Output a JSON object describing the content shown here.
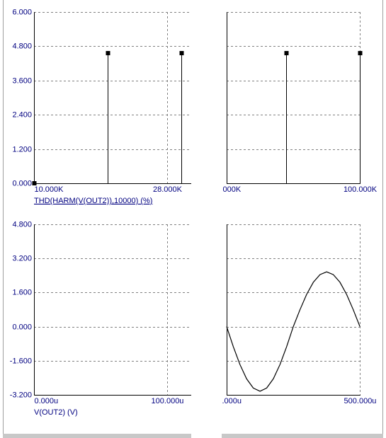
{
  "chart_data": [
    {
      "type": "stem",
      "x_label": "THD(HARM(V(OUT2)),10000) (%)",
      "x": [
        10000,
        20000,
        30000
      ],
      "series": [
        {
          "color": "#000000",
          "values": [
            0,
            4.56,
            4.56
          ]
        }
      ],
      "xlim": [
        10000,
        31300
      ],
      "xticks": [
        {
          "value": 10000,
          "label": "10.000K"
        },
        {
          "value": 28000,
          "label": "28.000K"
        }
      ],
      "ylim": [
        0,
        6
      ],
      "yticks": [
        {
          "value": 0,
          "label": "0.000"
        },
        {
          "value": 1.2,
          "label": "1.200"
        },
        {
          "value": 2.4,
          "label": "2.400"
        },
        {
          "value": 3.6,
          "label": "3.600"
        },
        {
          "value": 4.8,
          "label": "4.800"
        },
        {
          "value": 6,
          "label": "6.000"
        }
      ],
      "grid": true
    },
    {
      "type": "stem",
      "x": [
        44700,
        100000
      ],
      "series": [
        {
          "color": "#000000",
          "values": [
            4.56,
            4.56
          ]
        }
      ],
      "xlim": [
        0,
        100500
      ],
      "xticks": [
        {
          "value": 0,
          "label": "000K"
        },
        {
          "value": 100000,
          "label": "100.000K"
        }
      ],
      "grid": true
    },
    {
      "type": "line",
      "x_label": "V(OUT2) (V)",
      "series": [],
      "xlim": [
        0,
        118
      ],
      "xticks": [
        {
          "value": 0,
          "label": "0.000u"
        },
        {
          "value": 100,
          "label": "100.000u"
        }
      ],
      "ylim": [
        -3.2,
        4.8
      ],
      "yticks": [
        {
          "value": -3.2,
          "label": "-3.200"
        },
        {
          "value": -1.6,
          "label": "-1.600"
        },
        {
          "value": 0,
          "label": "0.000"
        },
        {
          "value": 1.6,
          "label": "1.600"
        },
        {
          "value": 3.2,
          "label": "3.200"
        },
        {
          "value": 4.8,
          "label": "4.800"
        }
      ],
      "grid": true
    },
    {
      "type": "line",
      "x": [
        0,
        25,
        50,
        75,
        100,
        125,
        150,
        175,
        200,
        225,
        250,
        275,
        300,
        325,
        350,
        375,
        400,
        425,
        450,
        475,
        500
      ],
      "series": [
        {
          "color": "#000000",
          "values": [
            0,
            -0.94,
            -1.78,
            -2.45,
            -2.88,
            -3.03,
            -2.88,
            -2.45,
            -1.78,
            -0.94,
            0,
            0.79,
            1.51,
            2.08,
            2.44,
            2.57,
            2.44,
            2.08,
            1.51,
            0.79,
            0
          ]
        }
      ],
      "xlim": [
        0,
        502
      ],
      "xticks": [
        {
          "value": 0,
          "label": ".000u"
        },
        {
          "value": 500,
          "label": "500.000u"
        }
      ],
      "grid": true
    }
  ]
}
